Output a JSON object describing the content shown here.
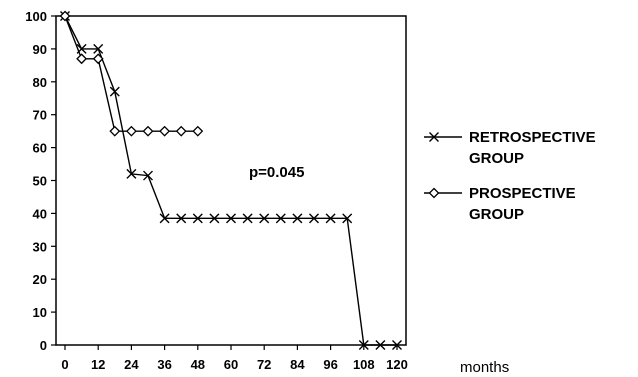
{
  "chart_data": {
    "type": "line",
    "x_unit_label": "months",
    "annotation": "p=0.045",
    "xlim": [
      0,
      120
    ],
    "ylim": [
      0,
      100
    ],
    "x_ticks": [
      0,
      12,
      24,
      36,
      48,
      60,
      72,
      84,
      96,
      108,
      120
    ],
    "y_ticks": [
      0,
      10,
      20,
      30,
      40,
      50,
      60,
      70,
      80,
      90,
      100
    ],
    "grid": false,
    "legend_position": "right",
    "series": [
      {
        "name": "RETROSPECTIVE GROUP",
        "legend_lines": [
          "RETROSPECTIVE",
          "GROUP"
        ],
        "marker": "x",
        "points": [
          [
            0,
            100
          ],
          [
            6,
            90
          ],
          [
            12,
            90
          ],
          [
            18,
            77
          ],
          [
            24,
            52
          ],
          [
            30,
            51.5
          ],
          [
            36,
            38.5
          ],
          [
            42,
            38.5
          ],
          [
            48,
            38.5
          ],
          [
            54,
            38.5
          ],
          [
            60,
            38.5
          ],
          [
            66,
            38.5
          ],
          [
            72,
            38.5
          ],
          [
            78,
            38.5
          ],
          [
            84,
            38.5
          ],
          [
            90,
            38.5
          ],
          [
            96,
            38.5
          ],
          [
            102,
            38.5
          ],
          [
            108,
            0
          ],
          [
            114,
            0
          ],
          [
            120,
            0
          ]
        ]
      },
      {
        "name": "PROSPECTIVE GROUP",
        "legend_lines": [
          "PROSPECTIVE",
          "GROUP"
        ],
        "marker": "diamond",
        "points": [
          [
            0,
            100
          ],
          [
            6,
            87
          ],
          [
            12,
            87
          ],
          [
            18,
            65
          ],
          [
            24,
            65
          ],
          [
            30,
            65
          ],
          [
            36,
            65
          ],
          [
            42,
            65
          ],
          [
            48,
            65
          ]
        ]
      }
    ]
  }
}
